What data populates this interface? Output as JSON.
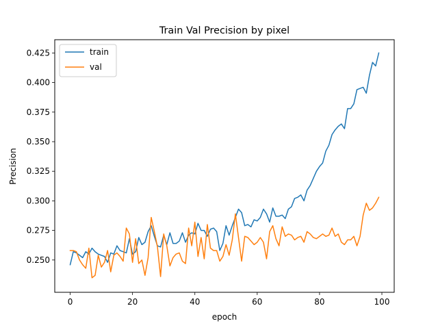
{
  "chart_data": {
    "type": "line",
    "title": "Train Val Precision by pixel",
    "xlabel": "epoch",
    "ylabel": "Precision",
    "xlim": [
      -4.95,
      103.95
    ],
    "ylim": [
      0.2227,
      0.4362
    ],
    "xticks": [
      0,
      20,
      40,
      60,
      80,
      100
    ],
    "yticks": [
      0.25,
      0.275,
      0.3,
      0.325,
      0.35,
      0.375,
      0.4,
      0.425
    ],
    "ytick_labels": [
      "0.250",
      "0.275",
      "0.300",
      "0.325",
      "0.350",
      "0.375",
      "0.400",
      "0.425"
    ],
    "grid": false,
    "legend_position": "top-left",
    "x": [
      0,
      1,
      2,
      3,
      4,
      5,
      6,
      7,
      8,
      9,
      10,
      11,
      12,
      13,
      14,
      15,
      16,
      17,
      18,
      19,
      20,
      21,
      22,
      23,
      24,
      25,
      26,
      27,
      28,
      29,
      30,
      31,
      32,
      33,
      34,
      35,
      36,
      37,
      38,
      39,
      40,
      41,
      42,
      43,
      44,
      45,
      46,
      47,
      48,
      49,
      50,
      51,
      52,
      53,
      54,
      55,
      56,
      57,
      58,
      59,
      60,
      61,
      62,
      63,
      64,
      65,
      66,
      67,
      68,
      69,
      70,
      71,
      72,
      73,
      74,
      75,
      76,
      77,
      78,
      79,
      80,
      81,
      82,
      83,
      84,
      85,
      86,
      87,
      88,
      89,
      90,
      91,
      92,
      93,
      94,
      95,
      96,
      97,
      98,
      99
    ],
    "series": [
      {
        "name": "train",
        "color": "#1f77b4",
        "values": [
          0.246,
          0.257,
          0.256,
          0.254,
          0.252,
          0.257,
          0.255,
          0.26,
          0.257,
          0.255,
          0.254,
          0.253,
          0.248,
          0.256,
          0.255,
          0.262,
          0.258,
          0.257,
          0.256,
          0.268,
          0.255,
          0.257,
          0.269,
          0.263,
          0.265,
          0.274,
          0.279,
          0.27,
          0.262,
          0.261,
          0.271,
          0.263,
          0.273,
          0.264,
          0.264,
          0.266,
          0.273,
          0.265,
          0.271,
          0.273,
          0.272,
          0.281,
          0.275,
          0.275,
          0.27,
          0.276,
          0.277,
          0.274,
          0.258,
          0.264,
          0.279,
          0.271,
          0.279,
          0.286,
          0.293,
          0.29,
          0.279,
          0.28,
          0.278,
          0.284,
          0.283,
          0.286,
          0.293,
          0.289,
          0.282,
          0.294,
          0.287,
          0.287,
          0.288,
          0.285,
          0.293,
          0.295,
          0.302,
          0.303,
          0.305,
          0.3,
          0.309,
          0.313,
          0.319,
          0.325,
          0.329,
          0.332,
          0.342,
          0.347,
          0.356,
          0.36,
          0.363,
          0.365,
          0.361,
          0.378,
          0.378,
          0.382,
          0.394,
          0.395,
          0.396,
          0.391,
          0.406,
          0.417,
          0.414,
          0.425
        ]
      },
      {
        "name": "val",
        "color": "#ff7f0e",
        "values": [
          0.258,
          0.258,
          0.257,
          0.25,
          0.246,
          0.243,
          0.26,
          0.235,
          0.237,
          0.254,
          0.244,
          0.248,
          0.258,
          0.24,
          0.254,
          0.256,
          0.253,
          0.249,
          0.277,
          0.272,
          0.248,
          0.268,
          0.247,
          0.25,
          0.237,
          0.252,
          0.286,
          0.274,
          0.261,
          0.236,
          0.272,
          0.262,
          0.245,
          0.252,
          0.255,
          0.256,
          0.249,
          0.247,
          0.277,
          0.262,
          0.282,
          0.253,
          0.269,
          0.251,
          0.28,
          0.26,
          0.258,
          0.258,
          0.249,
          0.253,
          0.263,
          0.254,
          0.267,
          0.289,
          0.269,
          0.249,
          0.27,
          0.269,
          0.266,
          0.263,
          0.265,
          0.269,
          0.265,
          0.251,
          0.274,
          0.279,
          0.268,
          0.262,
          0.278,
          0.27,
          0.272,
          0.271,
          0.267,
          0.269,
          0.27,
          0.265,
          0.274,
          0.272,
          0.269,
          0.268,
          0.27,
          0.272,
          0.27,
          0.271,
          0.277,
          0.27,
          0.272,
          0.265,
          0.263,
          0.267,
          0.267,
          0.27,
          0.262,
          0.27,
          0.288,
          0.298,
          0.292,
          0.294,
          0.298,
          0.303
        ]
      }
    ]
  }
}
